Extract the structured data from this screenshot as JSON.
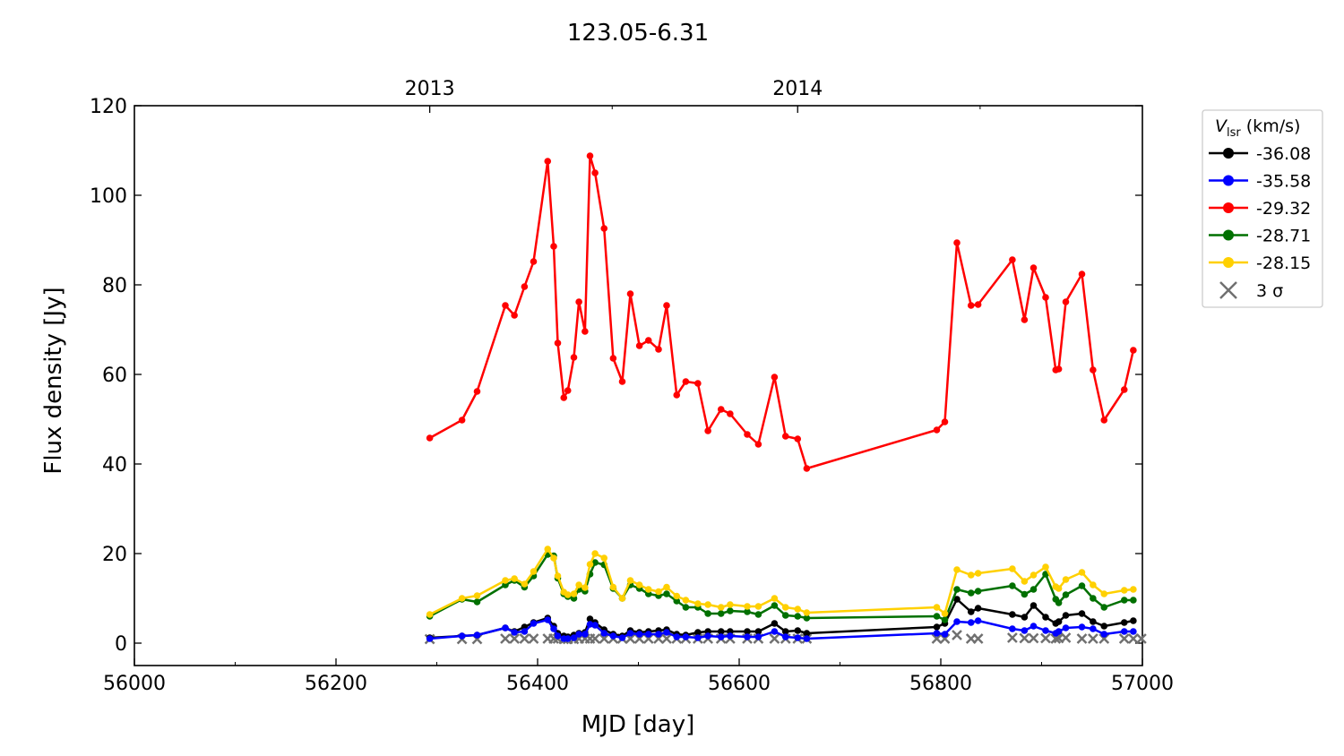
{
  "chart_data": {
    "type": "line",
    "title": "123.05-6.31",
    "xlabel": "MJD [day]",
    "ylabel": "Flux density [Jy]",
    "xlim": [
      56000,
      57000
    ],
    "ylim": [
      -5,
      120
    ],
    "xticks": [
      56000,
      56200,
      56400,
      56600,
      56800,
      57000
    ],
    "xtick_labels": [
      "56000",
      "56200",
      "56400",
      "56600",
      "56800",
      "57000"
    ],
    "yticks": [
      0,
      20,
      40,
      60,
      80,
      100,
      120
    ],
    "ytick_labels": [
      "0",
      "20",
      "40",
      "60",
      "80",
      "100",
      "120"
    ],
    "top_axis": {
      "ticks": [
        56293,
        56658
      ],
      "labels": [
        "2013",
        "2014"
      ],
      "minor": [
        56474,
        56839
      ]
    },
    "legend": {
      "title_main": "V",
      "title_sub": "lsr",
      "title_rest": " (km/s)",
      "placement": "outside-right-top",
      "sigma_label": "3 σ"
    },
    "x": [
      56293,
      56325,
      56340,
      56368,
      56377,
      56387,
      56396,
      56410,
      56416,
      56420,
      56426,
      56430,
      56436,
      56441,
      56447,
      56452,
      56457,
      56466,
      56475,
      56484,
      56492,
      56501,
      56510,
      56520,
      56528,
      56538,
      56547,
      56559,
      56569,
      56582,
      56591,
      56608,
      56619,
      56635,
      56646,
      56658,
      56667,
      56796,
      56804,
      56816,
      56830,
      56837,
      56871,
      56883,
      56892,
      56904,
      56914,
      56917,
      56924,
      56940,
      56951,
      56962,
      56982,
      56991
    ],
    "series": [
      {
        "name": "-36.08",
        "color": "#000000",
        "values": [
          1.2,
          1.6,
          1.8,
          3.4,
          2.6,
          3.6,
          4.6,
          5.6,
          3.8,
          2.2,
          1.6,
          1.4,
          1.8,
          2.2,
          2.4,
          5.4,
          4.6,
          3,
          2,
          1.6,
          2.8,
          2.4,
          2.6,
          2.8,
          3,
          2,
          1.8,
          2.4,
          2.6,
          2.6,
          2.6,
          2.6,
          2.6,
          4.4,
          2.6,
          2.8,
          2.2,
          3.6,
          4.4,
          9.8,
          7,
          7.8,
          6.4,
          5.8,
          8.4,
          5.8,
          4.4,
          4.8,
          6.2,
          6.6,
          4.8,
          3.8,
          4.6,
          5
        ]
      },
      {
        "name": "-35.58",
        "color": "#0000ff",
        "values": [
          1,
          1.6,
          1.8,
          3.4,
          2.4,
          2.6,
          4.4,
          5.2,
          3.2,
          1.6,
          1,
          1,
          1.2,
          2,
          2,
          4.2,
          4,
          2.2,
          1.6,
          1.2,
          2.2,
          2,
          2,
          2,
          2.4,
          1.4,
          1.4,
          1.2,
          1.6,
          1.4,
          1.6,
          1.4,
          1.4,
          2.6,
          1.4,
          1.2,
          1,
          2.2,
          2,
          4.8,
          4.6,
          5,
          3.2,
          2.8,
          3.8,
          2.8,
          2.2,
          2.6,
          3.4,
          3.6,
          3.2,
          2,
          2.6,
          2.6
        ]
      },
      {
        "name": "-29.32",
        "color": "#ff0000",
        "values": [
          45.8,
          49.8,
          56.2,
          75.4,
          73.2,
          79.6,
          85.2,
          107.6,
          88.6,
          67,
          54.8,
          56.4,
          63.8,
          76.2,
          69.6,
          108.8,
          105,
          92.6,
          63.6,
          58.4,
          78,
          66.4,
          67.6,
          65.6,
          75.4,
          55.4,
          58.4,
          58,
          47.4,
          52.2,
          51.2,
          46.6,
          44.4,
          59.4,
          46.2,
          45.6,
          39,
          47.6,
          49.4,
          89.4,
          75.4,
          75.6,
          85.6,
          72.2,
          83.8,
          77.2,
          61,
          61.2,
          76.2,
          82.4,
          61,
          49.8,
          56.6,
          65.4
        ]
      },
      {
        "name": "-28.71",
        "color": "#007000",
        "values": [
          6,
          9.8,
          9.2,
          13,
          14,
          12.5,
          15,
          19.8,
          19.5,
          14.5,
          11,
          10.4,
          10,
          12,
          11.6,
          15.4,
          18,
          17.5,
          12.2,
          10,
          13,
          12.2,
          11,
          10.6,
          11,
          9.4,
          8,
          8,
          6.6,
          6.6,
          7.2,
          7,
          6.4,
          8.4,
          6.2,
          6,
          5.6,
          6,
          5.2,
          12,
          11.2,
          11.6,
          12.8,
          10.9,
          12,
          15.4,
          9.8,
          9,
          10.8,
          12.8,
          10,
          8,
          9.6,
          9.6
        ]
      },
      {
        "name": "-28.15",
        "color": "#ffd000",
        "values": [
          6.4,
          10,
          10.6,
          14,
          14.4,
          13.2,
          16,
          21,
          19,
          15,
          11.4,
          10.8,
          11,
          13,
          12.4,
          17.6,
          20,
          19,
          12.5,
          10,
          14,
          13,
          12,
          11.5,
          12.5,
          10.5,
          9.6,
          8.8,
          8.6,
          8,
          8.6,
          8.2,
          8.2,
          10,
          8,
          7.6,
          6.8,
          8,
          6.6,
          16.4,
          15.2,
          15.6,
          16.6,
          13.8,
          15.2,
          17,
          12.6,
          12.2,
          14.2,
          15.8,
          13,
          11,
          11.8,
          12
        ]
      }
    ],
    "sigma3": {
      "name": "3 σ",
      "color": "#707070",
      "x": [
        56293,
        56325,
        56340,
        56368,
        56377,
        56387,
        56396,
        56410,
        56416,
        56420,
        56426,
        56430,
        56436,
        56441,
        56447,
        56452,
        56457,
        56466,
        56475,
        56484,
        56492,
        56501,
        56510,
        56520,
        56528,
        56538,
        56547,
        56559,
        56569,
        56582,
        56591,
        56608,
        56619,
        56635,
        56646,
        56658,
        56667,
        56796,
        56804,
        56816,
        56830,
        56837,
        56871,
        56883,
        56892,
        56904,
        56914,
        56917,
        56924,
        56940,
        56951,
        56962,
        56982,
        56991,
        56999
      ],
      "values": [
        0.9,
        0.9,
        0.9,
        1,
        1,
        1,
        1,
        1,
        1,
        1,
        0.9,
        0.9,
        0.9,
        1,
        1,
        1,
        1,
        1,
        1,
        1,
        1,
        1,
        1,
        1,
        1,
        1,
        1,
        1,
        1,
        1,
        1,
        1,
        1,
        1,
        1,
        1,
        1,
        1,
        1,
        1.8,
        1,
        1,
        1.2,
        1.1,
        1.1,
        1.1,
        1,
        1.1,
        1.2,
        1,
        1,
        1,
        1,
        1,
        1
      ]
    }
  }
}
